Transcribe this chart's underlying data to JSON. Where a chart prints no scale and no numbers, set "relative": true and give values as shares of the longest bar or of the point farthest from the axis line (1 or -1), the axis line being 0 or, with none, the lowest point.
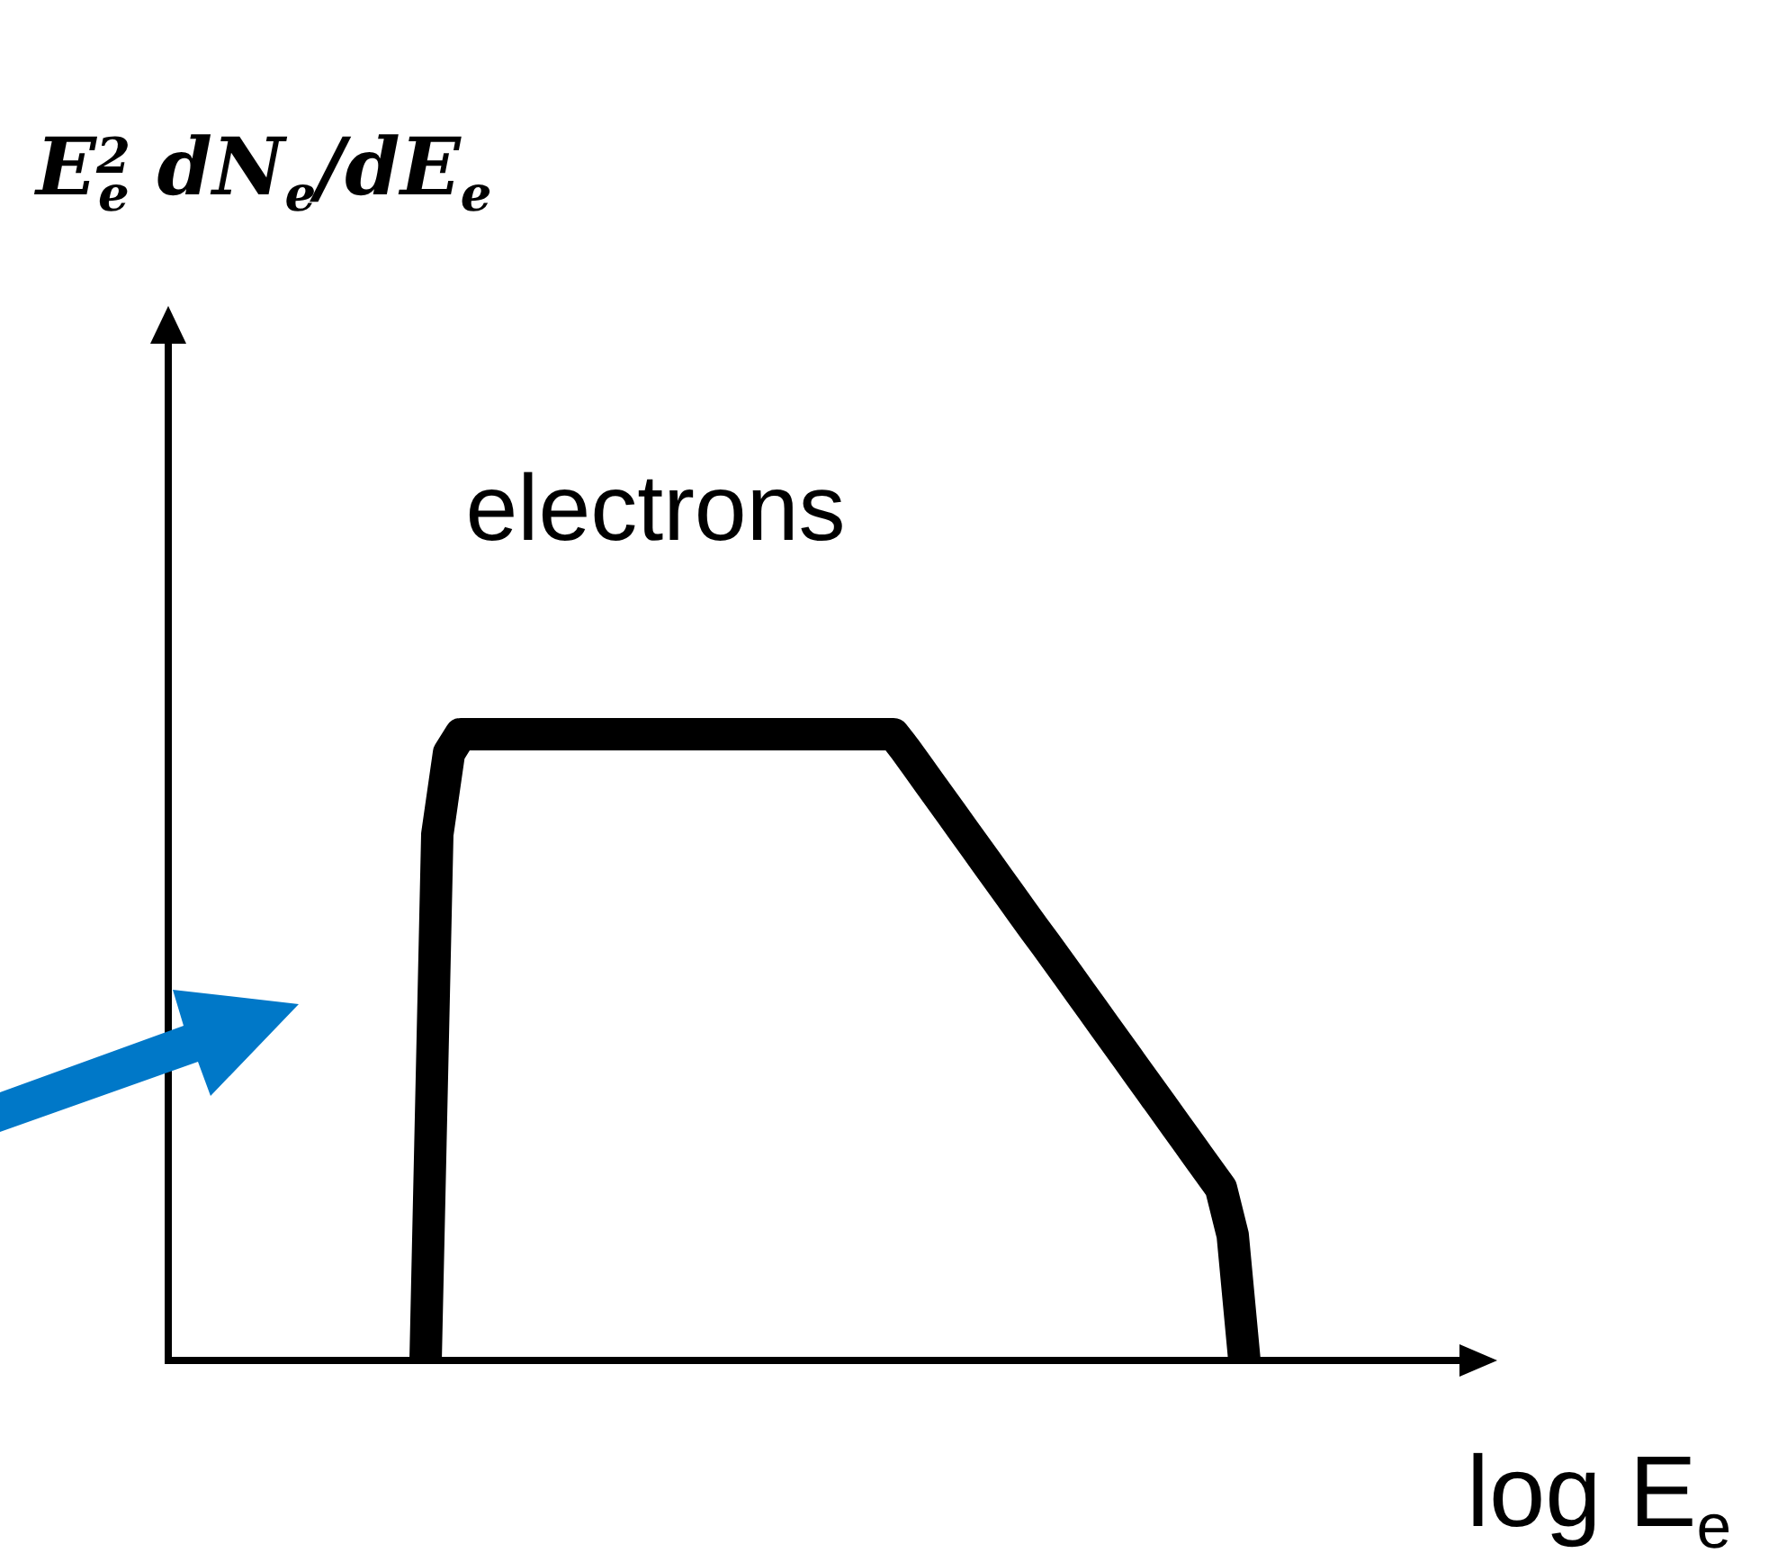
{
  "chart_data": {
    "type": "line",
    "relative": true,
    "xlabel": "log E$_{e}$",
    "annotations": [
      "E$^{2}$$_{e}$ dN$_{e}$/dE$_{e}$"
    ],
    "categories": [
      null,
      null,
      null,
      null,
      null,
      null,
      null,
      null,
      null,
      null,
      null,
      null,
      null,
      null,
      null,
      null,
      null,
      null,
      null,
      null,
      null,
      null,
      null,
      null,
      null,
      null,
      null,
      null,
      null,
      null,
      null,
      null,
      null,
      null,
      null,
      null,
      null,
      null,
      null,
      null,
      null,
      null,
      null,
      null,
      null,
      null,
      null,
      null,
      null,
      null,
      null,
      null,
      null,
      null,
      null,
      null,
      null,
      null,
      null,
      null,
      null,
      null,
      null,
      null,
      null,
      null,
      null,
      null,
      null,
      null,
      null,
      null,
      null,
      null,
      null,
      null,
      null,
      null,
      null,
      null,
      null,
      null,
      null,
      null,
      null,
      null,
      null,
      null,
      null,
      null,
      null,
      null,
      null,
      null,
      null,
      null,
      null,
      null,
      null,
      null,
      null,
      null,
      null,
      null,
      null,
      null,
      null,
      null,
      null,
      null,
      null,
      null,
      null,
      null
    ],
    "series": [
      {
        "name": "electrons",
        "color": "#000000",
        "values": [
          null,
          null,
          null,
          null,
          null,
          null,
          null,
          null,
          null,
          null,
          null,
          null,
          null,
          null,
          null,
          null,
          null,
          null,
          null,
          null,
          null,
          null,
          0,
          0.84,
          0.97,
          1,
          1,
          1,
          1,
          1,
          1,
          1,
          1,
          1,
          1,
          1,
          1,
          1,
          1,
          1,
          1,
          1,
          1,
          1,
          1,
          1,
          1,
          1,
          1,
          1,
          1,
          1,
          1,
          1,
          1,
          1,
          1,
          1,
          1,
          1,
          1,
          1,
          1,
          0.976,
          0.95,
          0.924,
          0.898,
          0.872,
          0.846,
          0.82,
          0.794,
          0.768,
          0.742,
          0.716,
          0.69,
          0.665,
          0.639,
          0.613,
          0.587,
          0.561,
          0.535,
          0.509,
          0.483,
          0.457,
          0.431,
          0.405,
          0.379,
          0.353,
          0.327,
          0.301,
          0.275,
          0.2,
          0,
          null,
          null,
          null,
          null,
          null,
          null,
          null,
          null,
          null,
          null,
          null,
          null,
          null,
          null,
          null,
          null,
          null,
          null,
          null,
          null,
          null
        ]
      }
    ]
  }
}
